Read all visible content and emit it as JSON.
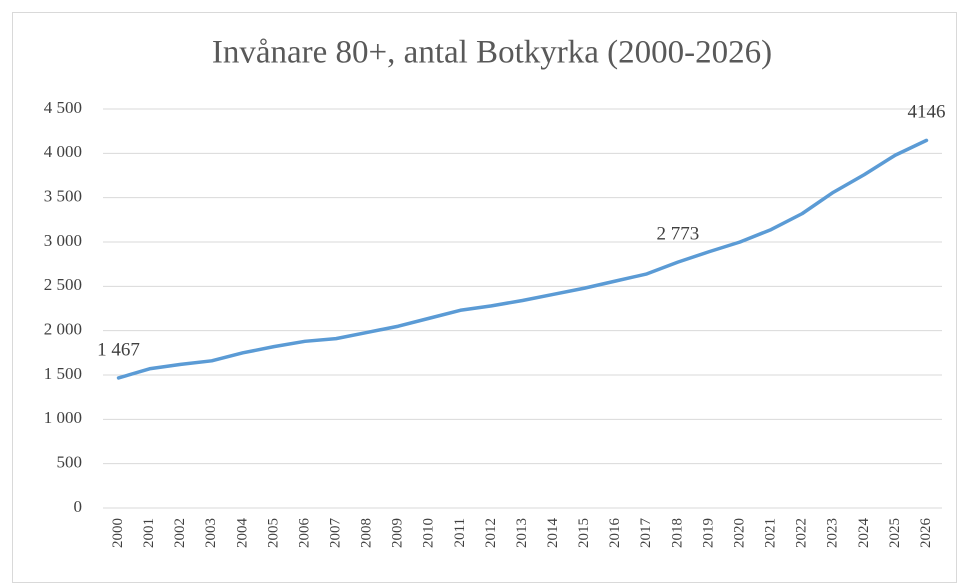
{
  "chart_data": {
    "type": "line",
    "title": "Invånare 80+, antal  Botkyrka (2000-2026)",
    "categories": [
      "2000",
      "2001",
      "2002",
      "2003",
      "2004",
      "2005",
      "2006",
      "2007",
      "2008",
      "2009",
      "2010",
      "2011",
      "2012",
      "2013",
      "2014",
      "2015",
      "2016",
      "2017",
      "2018",
      "2019",
      "2020",
      "2021",
      "2022",
      "2023",
      "2024",
      "2025",
      "2026"
    ],
    "series": [
      {
        "name": "Invånare 80+",
        "color": "#5b9bd5",
        "values": [
          1467,
          1570,
          1620,
          1660,
          1750,
          1820,
          1880,
          1910,
          1980,
          2050,
          2140,
          2230,
          2280,
          2340,
          2410,
          2480,
          2560,
          2640,
          2773,
          2890,
          3000,
          3140,
          3320,
          3560,
          3760,
          3980,
          4146
        ],
        "value_labels": [
          "1 467",
          null,
          null,
          null,
          null,
          null,
          null,
          null,
          null,
          null,
          null,
          null,
          null,
          null,
          null,
          null,
          null,
          null,
          "2 773",
          null,
          null,
          null,
          null,
          null,
          null,
          null,
          "4146"
        ]
      }
    ],
    "ylim": [
      0,
      4500
    ],
    "yticks": [
      0,
      500,
      {
        "value": 1000,
        "label": "1 000"
      },
      {
        "value": 1500,
        "label": "1 500"
      },
      {
        "value": 2000,
        "label": "2 000"
      },
      {
        "value": 2500,
        "label": "2 500"
      },
      {
        "value": 3000,
        "label": "3 000"
      },
      {
        "value": 3500,
        "label": "3 500"
      },
      {
        "value": 4000,
        "label": "4 000"
      },
      {
        "value": 4500,
        "label": "4 500"
      }
    ],
    "grid": true
  }
}
